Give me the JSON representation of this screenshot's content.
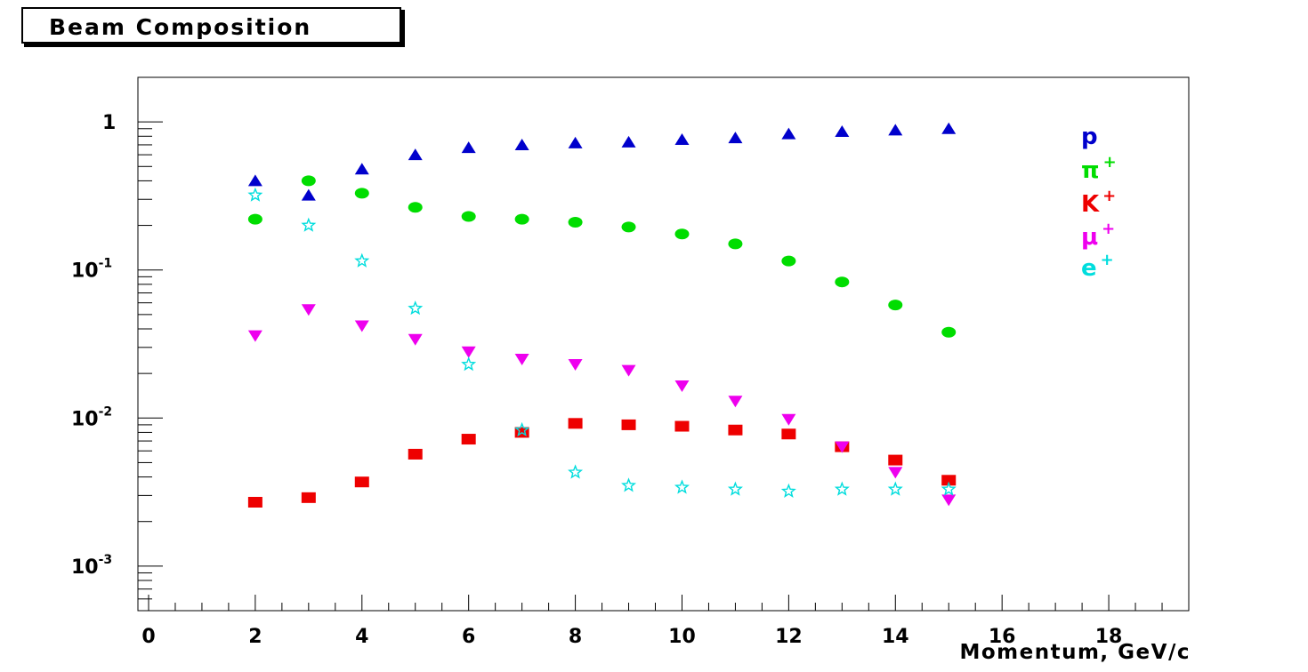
{
  "chart_data": {
    "type": "scatter",
    "title": "Beam Composition",
    "xlabel": "Momentum, GeV/c",
    "ylabel": "",
    "xlim": [
      -0.2,
      19.5
    ],
    "ylim": [
      0.0005,
      2.0
    ],
    "yscale": "log",
    "x_tick_labels": [
      "0",
      "2",
      "4",
      "6",
      "8",
      "10",
      "12",
      "14",
      "16",
      "18"
    ],
    "y_tick_labels": [
      {
        "base": "1",
        "exp": ""
      },
      {
        "base": "10",
        "exp": "-1"
      },
      {
        "base": "10",
        "exp": "-2"
      },
      {
        "base": "10",
        "exp": "-3"
      }
    ],
    "legend_position": "top-right",
    "grid": false,
    "series": [
      {
        "name": "p",
        "label_base": "p",
        "label_sup": "",
        "marker": "triangle-up",
        "color": "#0000cc",
        "x": [
          2,
          3,
          4,
          5,
          6,
          7,
          8,
          9,
          10,
          11,
          12,
          13,
          14,
          15
        ],
        "y": [
          0.4,
          0.32,
          0.48,
          0.6,
          0.67,
          0.7,
          0.72,
          0.73,
          0.76,
          0.78,
          0.83,
          0.86,
          0.88,
          0.9
        ]
      },
      {
        "name": "π+",
        "label_base": "π",
        "label_sup": "+",
        "marker": "circle",
        "color": "#00dd00",
        "x": [
          2,
          3,
          4,
          5,
          6,
          7,
          8,
          9,
          10,
          11,
          12,
          13,
          14,
          15
        ],
        "y": [
          0.22,
          0.4,
          0.33,
          0.265,
          0.23,
          0.22,
          0.21,
          0.195,
          0.175,
          0.15,
          0.115,
          0.083,
          0.058,
          0.038
        ]
      },
      {
        "name": "K+",
        "label_base": "K",
        "label_sup": "+",
        "marker": "square",
        "color": "#ee0000",
        "x": [
          2,
          3,
          4,
          5,
          6,
          7,
          8,
          9,
          10,
          11,
          12,
          13,
          14,
          15
        ],
        "y": [
          0.0027,
          0.0029,
          0.0037,
          0.0057,
          0.0072,
          0.008,
          0.0092,
          0.009,
          0.0088,
          0.0083,
          0.0078,
          0.0064,
          0.0052,
          0.0038
        ]
      },
      {
        "name": "μ+",
        "label_base": "μ",
        "label_sup": "+",
        "marker": "triangle-down",
        "color": "#ee00ee",
        "x": [
          2,
          3,
          4,
          5,
          6,
          7,
          8,
          9,
          10,
          11,
          12,
          13,
          14,
          15
        ],
        "y": [
          0.036,
          0.054,
          0.042,
          0.034,
          0.028,
          0.025,
          0.023,
          0.021,
          0.0165,
          0.013,
          0.0098,
          0.0064,
          0.0043,
          0.0028
        ]
      },
      {
        "name": "e+",
        "label_base": "e",
        "label_sup": "+",
        "marker": "star",
        "color": "#00dddd",
        "x": [
          2,
          3,
          4,
          5,
          6,
          7,
          8,
          9,
          10,
          11,
          12,
          13,
          14,
          15
        ],
        "y": [
          0.32,
          0.2,
          0.115,
          0.055,
          0.023,
          0.0083,
          0.0043,
          0.0035,
          0.0034,
          0.0033,
          0.0032,
          0.0033,
          0.0033,
          0.0033
        ]
      }
    ]
  }
}
